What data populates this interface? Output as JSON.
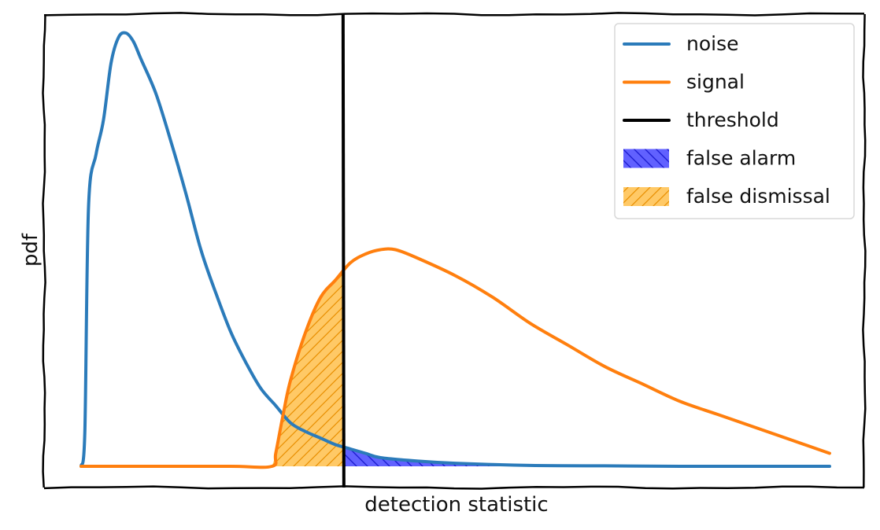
{
  "chart_data": {
    "type": "line",
    "title": "",
    "xlabel": "detection statistic",
    "ylabel": "pdf",
    "xlim": [
      0,
      1
    ],
    "ylim": [
      0,
      1
    ],
    "grid": false,
    "legend_position": "top-right",
    "threshold_x": 0.35,
    "series": [
      {
        "name": "noise",
        "color": "#2b7bba",
        "x": [
          0.0,
          0.005,
          0.01,
          0.02,
          0.03,
          0.04,
          0.05,
          0.06,
          0.07,
          0.08,
          0.1,
          0.12,
          0.14,
          0.16,
          0.18,
          0.2,
          0.22,
          0.24,
          0.26,
          0.28,
          0.3,
          0.32,
          0.34,
          0.36,
          0.38,
          0.4,
          0.45,
          0.5,
          0.6,
          0.7,
          0.8,
          0.9,
          1.0
        ],
        "y": [
          0.0,
          0.08,
          0.6,
          0.72,
          0.8,
          0.93,
          0.99,
          1.0,
          0.98,
          0.94,
          0.86,
          0.75,
          0.63,
          0.5,
          0.4,
          0.31,
          0.24,
          0.18,
          0.14,
          0.1,
          0.08,
          0.065,
          0.05,
          0.04,
          0.03,
          0.02,
          0.012,
          0.007,
          0.002,
          0.001,
          0.0,
          0.0,
          0.0
        ]
      },
      {
        "name": "signal",
        "color": "#ff7f0e",
        "x": [
          0.0,
          0.1,
          0.2,
          0.255,
          0.26,
          0.27,
          0.28,
          0.3,
          0.32,
          0.34,
          0.36,
          0.38,
          0.4,
          0.42,
          0.45,
          0.5,
          0.55,
          0.6,
          0.65,
          0.7,
          0.75,
          0.8,
          0.85,
          0.9,
          0.95,
          1.0
        ],
        "y": [
          0.0,
          0.0,
          0.0,
          0.0,
          0.03,
          0.12,
          0.2,
          0.31,
          0.39,
          0.43,
          0.47,
          0.49,
          0.5,
          0.5,
          0.48,
          0.44,
          0.39,
          0.33,
          0.28,
          0.23,
          0.19,
          0.15,
          0.12,
          0.09,
          0.06,
          0.03
        ]
      }
    ],
    "threshold": {
      "name": "threshold",
      "color": "#000000"
    },
    "regions": [
      {
        "name": "false alarm",
        "color": "#3a3aff",
        "hatch": "\\",
        "under": "noise",
        "from_x": 0.35,
        "to_x": 1.0
      },
      {
        "name": "false dismissal",
        "color": "#ffa500",
        "hatch": "/",
        "under": "signal",
        "from_x": 0.255,
        "to_x": 0.35
      }
    ]
  }
}
